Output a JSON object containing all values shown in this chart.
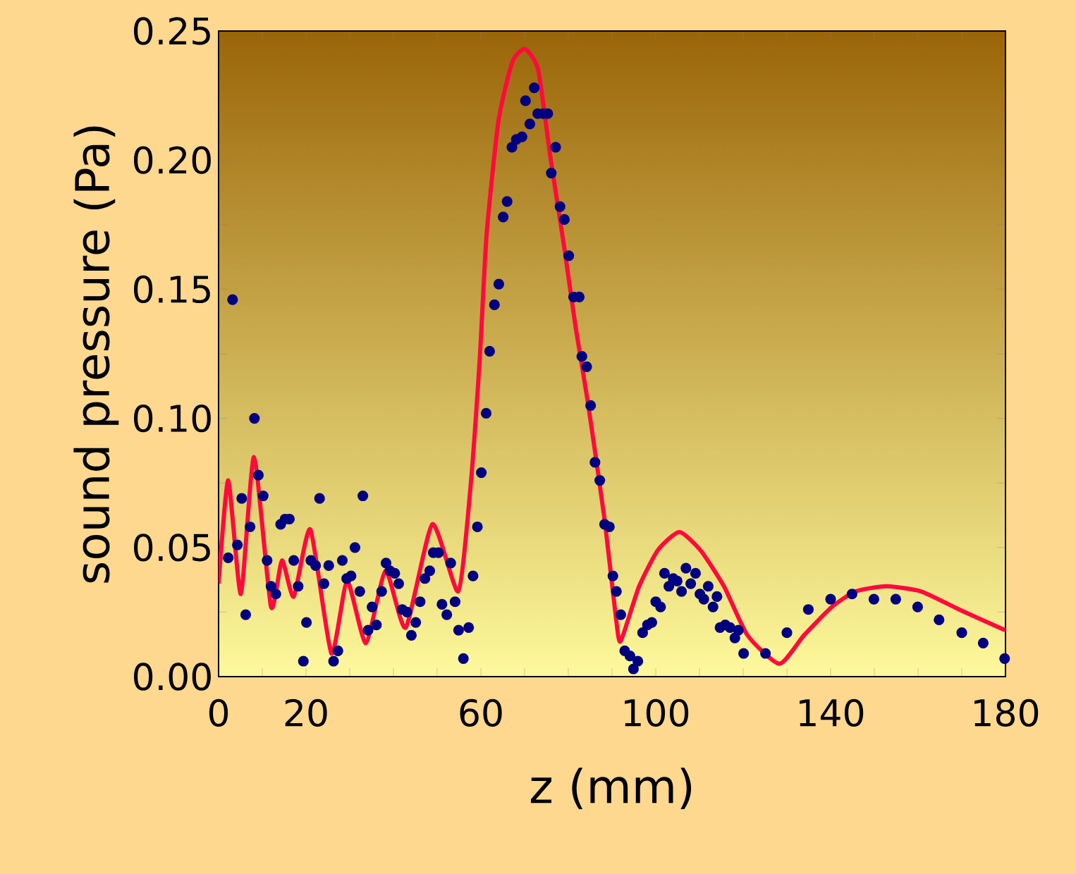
{
  "chart_data": {
    "type": "scatter",
    "xlabel": "z (mm)",
    "ylabel": "sound pressure  (Pa)",
    "xlim": [
      0,
      180
    ],
    "ylim": [
      0,
      0.25
    ],
    "xticks": [
      {
        "value": 0,
        "label": "0"
      },
      {
        "value": 10,
        "label": null
      },
      {
        "value": 20,
        "label": "20"
      },
      {
        "value": 30,
        "label": null
      },
      {
        "value": 40,
        "label": null
      },
      {
        "value": 50,
        "label": null
      },
      {
        "value": 60,
        "label": "60"
      },
      {
        "value": 70,
        "label": null
      },
      {
        "value": 80,
        "label": null
      },
      {
        "value": 90,
        "label": null
      },
      {
        "value": 100,
        "label": "100"
      },
      {
        "value": 110,
        "label": null
      },
      {
        "value": 120,
        "label": null
      },
      {
        "value": 130,
        "label": null
      },
      {
        "value": 140,
        "label": "140"
      },
      {
        "value": 150,
        "label": null
      },
      {
        "value": 160,
        "label": null
      },
      {
        "value": 170,
        "label": null
      },
      {
        "value": 180,
        "label": "180"
      }
    ],
    "yticks": [
      {
        "value": 0,
        "label": "0.00"
      },
      {
        "value": 0.025,
        "label": null
      },
      {
        "value": 0.05,
        "label": "0.05"
      },
      {
        "value": 0.075,
        "label": null
      },
      {
        "value": 0.1,
        "label": "0.10"
      },
      {
        "value": 0.125,
        "label": null
      },
      {
        "value": 0.15,
        "label": "0.15"
      },
      {
        "value": 0.175,
        "label": null
      },
      {
        "value": 0.2,
        "label": "0.20"
      },
      {
        "value": 0.225,
        "label": null
      },
      {
        "value": 0.25,
        "label": "0.25"
      }
    ],
    "grid": false,
    "line_style": "solid",
    "series": [
      {
        "marker": "circle",
        "color": "#000080",
        "x": [
          2.2,
          3.2,
          4.3,
          5.3,
          6.2,
          7.2,
          8.2,
          9.1,
          10.2,
          11.1,
          12.0,
          13.1,
          14.2,
          15.2,
          16.2,
          17.2,
          18.2,
          19.4,
          20.1,
          21.1,
          22.2,
          23.1,
          24.1,
          25.2,
          26.3,
          27.3,
          28.3,
          29.3,
          30.3,
          31.2,
          32.3,
          33.0,
          34.2,
          35.1,
          36.1,
          37.3,
          38.3,
          39.2,
          40.3,
          41.2,
          42.0,
          43.1,
          44.1,
          45.1,
          46.1,
          47.2,
          48.3,
          49.1,
          50.3,
          51.1,
          52.2,
          53.1,
          54.1,
          54.9,
          56.0,
          57.2,
          58.2,
          59.2,
          60.1,
          61.2,
          62.0,
          63.1,
          64.1,
          65.1,
          66.0,
          67.1,
          68.1,
          69.4,
          70.2,
          71.2,
          72.2,
          73.0,
          74.3,
          75.3,
          76.1,
          77.1,
          78.1,
          79.1,
          80.1,
          81.2,
          82.5,
          83.1,
          84.2,
          85.1,
          86.1,
          87.2,
          88.3,
          89.4,
          90.2,
          91.0,
          92.0,
          92.9,
          94.1,
          94.9,
          95.9,
          97.0,
          98.1,
          99.1,
          100.0,
          101.1,
          102.0,
          103.0,
          104.0,
          104.9,
          105.9,
          106.9,
          108.0,
          109.1,
          110.1,
          111.0,
          112.0,
          113.1,
          114.0,
          114.7,
          115.9,
          117.0,
          118.1,
          118.9,
          120.1,
          125.1,
          130.0,
          134.9,
          140.0,
          144.9,
          149.9,
          154.9,
          159.9,
          164.8,
          170.0,
          174.9,
          179.8
        ],
        "values": [
          0.046,
          0.146,
          0.051,
          0.069,
          0.024,
          0.058,
          0.1,
          0.078,
          0.07,
          0.045,
          0.035,
          0.032,
          0.059,
          0.061,
          0.061,
          0.045,
          0.035,
          0.006,
          0.021,
          0.045,
          0.043,
          0.069,
          0.036,
          0.043,
          0.006,
          0.01,
          0.045,
          0.038,
          0.039,
          0.05,
          0.033,
          0.07,
          0.018,
          0.027,
          0.02,
          0.033,
          0.044,
          0.041,
          0.04,
          0.036,
          0.026,
          0.025,
          0.016,
          0.021,
          0.029,
          0.038,
          0.041,
          0.048,
          0.048,
          0.028,
          0.024,
          0.044,
          0.029,
          0.018,
          0.007,
          0.019,
          0.039,
          0.058,
          0.079,
          0.102,
          0.126,
          0.144,
          0.152,
          0.178,
          0.184,
          0.205,
          0.208,
          0.209,
          0.223,
          0.214,
          0.228,
          0.218,
          0.218,
          0.218,
          0.195,
          0.205,
          0.182,
          0.177,
          0.163,
          0.147,
          0.147,
          0.124,
          0.12,
          0.105,
          0.083,
          0.076,
          0.059,
          0.058,
          0.039,
          0.033,
          0.024,
          0.01,
          0.008,
          0.003,
          0.006,
          0.017,
          0.02,
          0.021,
          0.029,
          0.027,
          0.04,
          0.035,
          0.038,
          0.037,
          0.033,
          0.042,
          0.036,
          0.04,
          0.032,
          0.03,
          0.035,
          0.027,
          0.031,
          0.019,
          0.02,
          0.019,
          0.015,
          0.018,
          0.009,
          0.009,
          0.017,
          0.026,
          0.03,
          0.032,
          0.03,
          0.03,
          0.027,
          0.022,
          0.017,
          0.013,
          0.007
        ]
      },
      {
        "type": "line",
        "marker": "none",
        "color": "#ff0a3c",
        "x": [
          0,
          2.2,
          5.1,
          8.1,
          12.0,
          14.5,
          17.2,
          21.0,
          25.8,
          29.4,
          33.7,
          38.2,
          42.8,
          48.9,
          54.8,
          57.5,
          59.7,
          61.3,
          64.0,
          67.2,
          70.1,
          73.1,
          76.0,
          79.0,
          81.7,
          84.4,
          88.2,
          91.4,
          92.5,
          96.2,
          100.5,
          105.4,
          110.2,
          115.6,
          121.0,
          128.3,
          133.9,
          140.3,
          145.7,
          152.7,
          160.7,
          169.4,
          179.9
        ],
        "values": [
          0.036,
          0.076,
          0.032,
          0.085,
          0.027,
          0.045,
          0.031,
          0.057,
          0.009,
          0.037,
          0.013,
          0.041,
          0.019,
          0.059,
          0.033,
          0.071,
          0.122,
          0.171,
          0.215,
          0.238,
          0.243,
          0.235,
          0.2,
          0.167,
          0.135,
          0.107,
          0.062,
          0.016,
          0.016,
          0.035,
          0.049,
          0.056,
          0.049,
          0.035,
          0.016,
          0.005,
          0.016,
          0.027,
          0.033,
          0.035,
          0.033,
          0.026,
          0.018
        ]
      }
    ]
  }
}
